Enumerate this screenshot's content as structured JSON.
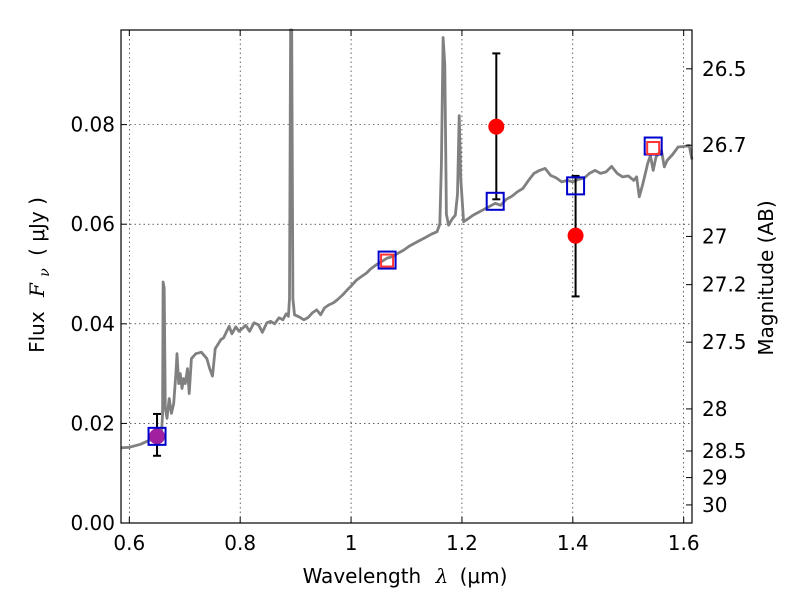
{
  "chart_data": {
    "type": "scatter",
    "xlabel_text": "Wavelength",
    "xlabel_symbol": "λ",
    "xlabel_unit": "(μm)",
    "ylabel_text": "Flux",
    "ylabel_symbol": "F",
    "ylabel_subscript": "ν",
    "ylabel_unit": "( μJy )",
    "y2label": "Magnitude (AB)",
    "xlim": [
      0.585,
      1.615
    ],
    "ylim": [
      0.0,
      0.099
    ],
    "grid": true,
    "x_ticks": [
      {
        "value": 0.6,
        "label": "0.6"
      },
      {
        "value": 0.8,
        "label": "0.8"
      },
      {
        "value": 1.0,
        "label": "1"
      },
      {
        "value": 1.2,
        "label": "1.2"
      },
      {
        "value": 1.4,
        "label": "1.4"
      },
      {
        "value": 1.6,
        "label": "1.6"
      }
    ],
    "y_ticks": [
      {
        "value": 0.0,
        "label": "0.00"
      },
      {
        "value": 0.02,
        "label": "0.02"
      },
      {
        "value": 0.04,
        "label": "0.04"
      },
      {
        "value": 0.06,
        "label": "0.06"
      },
      {
        "value": 0.08,
        "label": "0.08"
      }
    ],
    "magnitude_ticks": [
      {
        "value": 26.5,
        "label": "26.5"
      },
      {
        "value": 26.7,
        "label": "26.7"
      },
      {
        "value": 27.0,
        "label": "27"
      },
      {
        "value": 27.2,
        "label": "27.2"
      },
      {
        "value": 27.5,
        "label": "27.5"
      },
      {
        "value": 28.0,
        "label": "28"
      },
      {
        "value": 28.5,
        "label": "28.5"
      },
      {
        "value": 29.0,
        "label": "29"
      },
      {
        "value": 30.0,
        "label": "30"
      }
    ],
    "series": [
      {
        "type": "line",
        "color": "#808080",
        "points": [
          [
            0.585,
            0.0151
          ],
          [
            0.6,
            0.0152
          ],
          [
            0.62,
            0.0158
          ],
          [
            0.64,
            0.0168
          ],
          [
            0.65,
            0.0174
          ],
          [
            0.655,
            0.0178
          ],
          [
            0.658,
            0.018
          ],
          [
            0.66,
            0.022
          ],
          [
            0.661,
            0.0484
          ],
          [
            0.663,
            0.0472
          ],
          [
            0.665,
            0.023
          ],
          [
            0.668,
            0.021
          ],
          [
            0.672,
            0.025
          ],
          [
            0.676,
            0.022
          ],
          [
            0.68,
            0.024
          ],
          [
            0.684,
            0.03
          ],
          [
            0.686,
            0.034
          ],
          [
            0.689,
            0.028
          ],
          [
            0.692,
            0.03
          ],
          [
            0.695,
            0.027
          ],
          [
            0.698,
            0.029
          ],
          [
            0.701,
            0.028
          ],
          [
            0.705,
            0.031
          ],
          [
            0.708,
            0.026
          ],
          [
            0.712,
            0.033
          ],
          [
            0.72,
            0.034
          ],
          [
            0.73,
            0.0343
          ],
          [
            0.74,
            0.033
          ],
          [
            0.745,
            0.031
          ],
          [
            0.75,
            0.0295
          ],
          [
            0.755,
            0.035
          ],
          [
            0.765,
            0.0368
          ],
          [
            0.77,
            0.0372
          ],
          [
            0.78,
            0.0395
          ],
          [
            0.785,
            0.038
          ],
          [
            0.792,
            0.0394
          ],
          [
            0.798,
            0.0385
          ],
          [
            0.805,
            0.0392
          ],
          [
            0.81,
            0.0397
          ],
          [
            0.817,
            0.0385
          ],
          [
            0.825,
            0.0402
          ],
          [
            0.833,
            0.0398
          ],
          [
            0.84,
            0.0383
          ],
          [
            0.848,
            0.0402
          ],
          [
            0.855,
            0.0405
          ],
          [
            0.862,
            0.04
          ],
          [
            0.87,
            0.0412
          ],
          [
            0.877,
            0.0408
          ],
          [
            0.883,
            0.042
          ],
          [
            0.887,
            0.0415
          ],
          [
            0.889,
            0.045
          ],
          [
            0.891,
            0.099
          ],
          [
            0.893,
            0.099
          ],
          [
            0.895,
            0.045
          ],
          [
            0.898,
            0.0418
          ],
          [
            0.906,
            0.0414
          ],
          [
            0.915,
            0.0408
          ],
          [
            0.922,
            0.0412
          ],
          [
            0.93,
            0.0422
          ],
          [
            0.938,
            0.0428
          ],
          [
            0.945,
            0.0418
          ],
          [
            0.952,
            0.0432
          ],
          [
            0.96,
            0.0438
          ],
          [
            0.968,
            0.0442
          ],
          [
            0.975,
            0.0448
          ],
          [
            0.985,
            0.0458
          ],
          [
            0.993,
            0.0468
          ],
          [
            1.0,
            0.0476
          ],
          [
            1.01,
            0.0488
          ],
          [
            1.02,
            0.0496
          ],
          [
            1.028,
            0.0502
          ],
          [
            1.035,
            0.051
          ],
          [
            1.045,
            0.0518
          ],
          [
            1.055,
            0.0525
          ],
          [
            1.065,
            0.0532
          ],
          [
            1.075,
            0.0535
          ],
          [
            1.085,
            0.0542
          ],
          [
            1.095,
            0.0548
          ],
          [
            1.105,
            0.0556
          ],
          [
            1.115,
            0.0562
          ],
          [
            1.125,
            0.0568
          ],
          [
            1.135,
            0.0574
          ],
          [
            1.145,
            0.058
          ],
          [
            1.155,
            0.0585
          ],
          [
            1.16,
            0.06
          ],
          [
            1.163,
            0.072
          ],
          [
            1.166,
            0.0975
          ],
          [
            1.169,
            0.092
          ],
          [
            1.172,
            0.062
          ],
          [
            1.176,
            0.0598
          ],
          [
            1.182,
            0.061
          ],
          [
            1.188,
            0.0618
          ],
          [
            1.192,
            0.066
          ],
          [
            1.195,
            0.0818
          ],
          [
            1.198,
            0.069
          ],
          [
            1.203,
            0.0605
          ],
          [
            1.21,
            0.061
          ],
          [
            1.22,
            0.0618
          ],
          [
            1.23,
            0.0624
          ],
          [
            1.24,
            0.063
          ],
          [
            1.25,
            0.0636
          ],
          [
            1.26,
            0.0642
          ],
          [
            1.27,
            0.0638
          ],
          [
            1.28,
            0.065
          ],
          [
            1.29,
            0.0656
          ],
          [
            1.3,
            0.0665
          ],
          [
            1.31,
            0.0672
          ],
          [
            1.32,
            0.0688
          ],
          [
            1.33,
            0.0702
          ],
          [
            1.34,
            0.0708
          ],
          [
            1.35,
            0.0712
          ],
          [
            1.36,
            0.0698
          ],
          [
            1.37,
            0.0693
          ],
          [
            1.38,
            0.0685
          ],
          [
            1.39,
            0.0688
          ],
          [
            1.4,
            0.0685
          ],
          [
            1.41,
            0.069
          ],
          [
            1.42,
            0.0692
          ],
          [
            1.43,
            0.0702
          ],
          [
            1.44,
            0.0708
          ],
          [
            1.45,
            0.0702
          ],
          [
            1.46,
            0.0705
          ],
          [
            1.47,
            0.0716
          ],
          [
            1.48,
            0.0702
          ],
          [
            1.49,
            0.0695
          ],
          [
            1.5,
            0.0697
          ],
          [
            1.51,
            0.0688
          ],
          [
            1.515,
            0.0695
          ],
          [
            1.52,
            0.0655
          ],
          [
            1.526,
            0.068
          ],
          [
            1.535,
            0.0722
          ],
          [
            1.54,
            0.0738
          ],
          [
            1.545,
            0.0708
          ],
          [
            1.55,
            0.0735
          ],
          [
            1.555,
            0.0742
          ],
          [
            1.56,
            0.0748
          ],
          [
            1.565,
            0.0715
          ],
          [
            1.57,
            0.0728
          ],
          [
            1.58,
            0.074
          ],
          [
            1.59,
            0.0755
          ],
          [
            1.6,
            0.0756
          ],
          [
            1.61,
            0.0758
          ],
          [
            1.615,
            0.073
          ]
        ]
      },
      {
        "type": "scatter",
        "marker": "circle",
        "color": "#ff0000",
        "points": [
          {
            "x": 1.262,
            "y": 0.0796,
            "yerr_low": 0.065,
            "yerr_high": 0.0943
          },
          {
            "x": 1.405,
            "y": 0.0577,
            "yerr_low": 0.0455,
            "yerr_high": 0.0697
          }
        ]
      },
      {
        "type": "scatter",
        "marker": "circle",
        "color": "#a020a0",
        "points": [
          {
            "x": 0.65,
            "y": 0.0174,
            "yerr_low": 0.0135,
            "yerr_high": 0.0219
          }
        ]
      },
      {
        "type": "scatter",
        "marker": "square-open",
        "color": "#0000cc",
        "points": [
          {
            "x": 0.65,
            "y": 0.0174
          },
          {
            "x": 1.065,
            "y": 0.0528
          },
          {
            "x": 1.26,
            "y": 0.0646
          },
          {
            "x": 1.405,
            "y": 0.0677
          },
          {
            "x": 1.545,
            "y": 0.0757
          }
        ]
      },
      {
        "type": "scatter",
        "marker": "square-open",
        "color": "#ff3333",
        "points": [
          {
            "x": 1.065,
            "y": 0.0527
          },
          {
            "x": 1.545,
            "y": 0.0753
          }
        ]
      }
    ]
  }
}
